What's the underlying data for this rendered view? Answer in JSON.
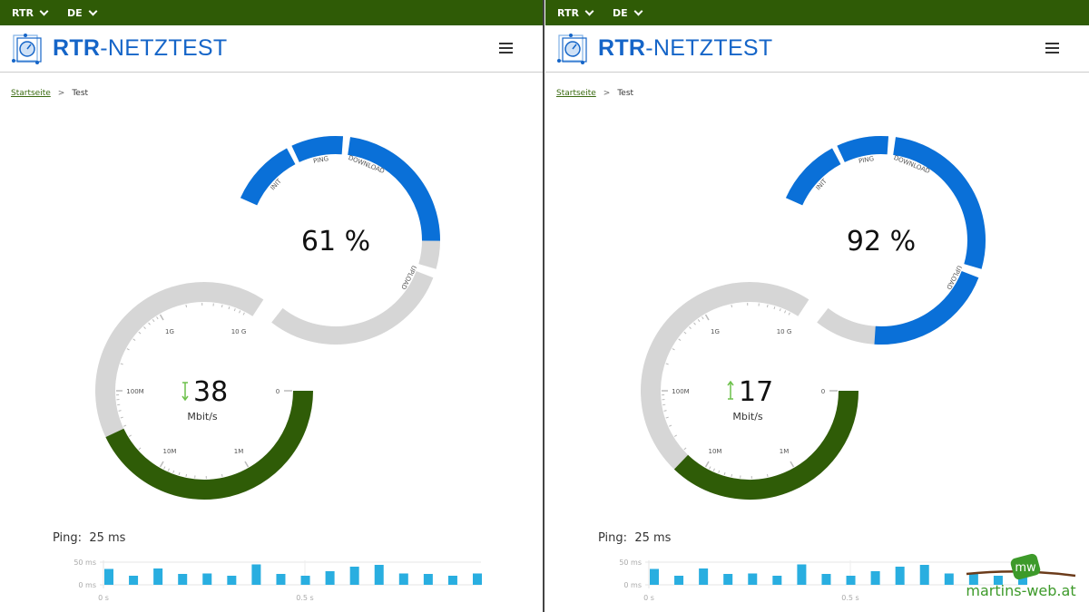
{
  "colors": {
    "topbar": "#2f5b06",
    "accent_blue": "#0a70d8",
    "track_gray": "#d6d6d6",
    "speed_green": "#2f5c07",
    "ping_bar": "#29aee0"
  },
  "topbar": {
    "org_dropdown": "RTR",
    "lang_dropdown": "DE"
  },
  "header": {
    "logo_bold": "RTR",
    "logo_rest": "-NETZTEST",
    "menu_icon": "hamburger-icon"
  },
  "breadcrumb": {
    "home": "Startseite",
    "separator": ">",
    "current": "Test"
  },
  "status_ring": {
    "phases": [
      "INIT",
      "PING",
      "DOWNLOAD",
      "UPLOAD"
    ]
  },
  "speed_gauge": {
    "scale_labels": [
      "0",
      "1M",
      "10M",
      "100M",
      "1G",
      "10 G"
    ],
    "unit": "Mbit/s"
  },
  "ping_chart": {
    "y_ticks": [
      "50 ms",
      "0 ms"
    ],
    "x_ticks": [
      "0 s",
      "0.5 s"
    ],
    "ymax_ms": 50
  },
  "panels": [
    {
      "progress_percent": 61,
      "phase": "DOWNLOAD",
      "phase_fill": 0.84,
      "speed_value": "38",
      "speed_mbps": 38,
      "direction": "down",
      "ping_label": "Ping:",
      "ping_value": "25 ms",
      "ping_samples_ms": [
        35,
        20,
        36,
        24,
        25,
        20,
        45,
        24,
        20,
        30,
        40,
        44,
        25,
        24,
        20,
        25
      ]
    },
    {
      "progress_percent": 92,
      "phase": "UPLOAD",
      "phase_fill": 0.68,
      "speed_value": "17",
      "speed_mbps": 17,
      "direction": "up",
      "ping_label": "Ping:",
      "ping_value": "25 ms",
      "ping_samples_ms": [
        35,
        20,
        36,
        24,
        25,
        20,
        45,
        24,
        20,
        30,
        40,
        44,
        25,
        24,
        20,
        25
      ]
    }
  ],
  "watermark": {
    "text": "martins-web.at",
    "badge": "mw"
  }
}
